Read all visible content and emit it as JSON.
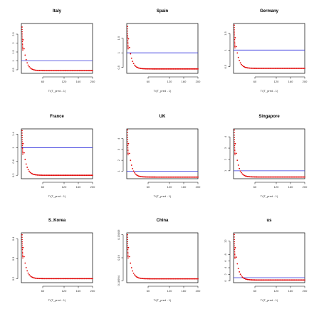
{
  "chart_data": [
    {
      "type": "scatter",
      "title": "Italy",
      "xlabel": "T/(T_pred - 1)",
      "ylabel": "",
      "xlim": [
        0,
        200
      ],
      "ylim": [
        0.3,
        3.1
      ],
      "x_ticks": [
        60,
        120,
        160,
        200
      ],
      "y_ticks": [
        0.5,
        1,
        1.5,
        2,
        2.5
      ],
      "hline": 1.0,
      "x_start": 2,
      "x_end": 200,
      "y_start": 2.9,
      "y_floor": 0.45,
      "decay": 0.12
    },
    {
      "type": "scatter",
      "title": "Spain",
      "xlabel": "T/(T_pred - 1)",
      "ylabel": "",
      "xlim": [
        0,
        200
      ],
      "ylim": [
        0.3,
        2.0
      ],
      "x_ticks": [
        60,
        120,
        160,
        200
      ],
      "y_ticks": [
        0.5,
        1,
        1.5
      ],
      "hline": 1.0,
      "x_start": 2,
      "x_end": 200,
      "y_start": 1.9,
      "y_floor": 0.45,
      "decay": 0.12
    },
    {
      "type": "scatter",
      "title": "Germany",
      "xlabel": "T/(T_pred - 1)",
      "ylabel": "",
      "xlim": [
        0,
        200
      ],
      "ylim": [
        0.3,
        1.8
      ],
      "x_ticks": [
        60,
        120,
        160,
        200
      ],
      "y_ticks": [
        0.5,
        1,
        1.5
      ],
      "hline": 1.0,
      "x_start": 2,
      "x_end": 200,
      "y_start": 1.75,
      "y_floor": 0.45,
      "decay": 0.12
    },
    {
      "type": "scatter",
      "title": "France",
      "xlabel": "T/(T_pred - 1)",
      "ylabel": "",
      "xlim": [
        0,
        200
      ],
      "ylim": [
        0.1,
        1.55
      ],
      "x_ticks": [
        60,
        120,
        160,
        200
      ],
      "y_ticks": [
        0.2,
        0.6,
        1.0,
        1.4
      ],
      "hline": 1.0,
      "x_start": 2,
      "x_end": 200,
      "y_start": 1.5,
      "y_floor": 0.2,
      "decay": 0.12
    },
    {
      "type": "scatter",
      "title": "UK",
      "xlabel": "T/(T_pred - 1)",
      "ylabel": "",
      "xlim": [
        0,
        200
      ],
      "ylim": [
        0.3,
        4.9
      ],
      "x_ticks": [
        60,
        120,
        160,
        200
      ],
      "y_ticks": [
        1,
        2,
        3,
        4
      ],
      "hline": 1.0,
      "x_start": 2,
      "x_end": 200,
      "y_start": 4.8,
      "y_floor": 0.45,
      "decay": 0.12
    },
    {
      "type": "scatter",
      "title": "Singapore",
      "xlabel": "T/(T_pred - 1)",
      "ylabel": "",
      "xlim": [
        0,
        200
      ],
      "ylim": [
        0.3,
        4.7
      ],
      "x_ticks": [
        60,
        120,
        160,
        200
      ],
      "y_ticks": [
        1,
        2,
        3,
        4
      ],
      "hline": 1.0,
      "x_start": 2,
      "x_end": 200,
      "y_start": 4.6,
      "y_floor": 0.45,
      "decay": 0.12
    },
    {
      "type": "scatter",
      "title": "S_Korea",
      "xlabel": "T/(T_pred - 1)",
      "ylabel": "",
      "xlim": [
        0,
        200
      ],
      "ylim": [
        0.18,
        0.43
      ],
      "x_ticks": [
        60,
        120,
        160,
        200
      ],
      "y_ticks": [
        0.2,
        0.3,
        0.4
      ],
      "hline": null,
      "x_start": 2,
      "x_end": 200,
      "y_start": 0.42,
      "y_floor": 0.2,
      "decay": 0.12
    },
    {
      "type": "scatter",
      "title": "China",
      "xlabel": "T/(T_pred - 1)",
      "ylabel": "",
      "xlim": [
        0,
        200
      ],
      "ylim": [
        0.189935,
        0.190065
      ],
      "x_ticks": [
        60,
        120,
        160,
        200
      ],
      "y_ticks": [
        0.18994,
        0.19,
        0.19006
      ],
      "hline": null,
      "x_start": 2,
      "x_end": 200,
      "y_start": 0.19006,
      "y_floor": 0.189945,
      "decay": 0.12
    },
    {
      "type": "scatter",
      "title": "us",
      "xlabel": "T/(T_pred - 1)",
      "ylabel": "",
      "xlim": [
        0,
        200
      ],
      "ylim": [
        -0.5,
        14.5
      ],
      "x_ticks": [
        60,
        120,
        160,
        200
      ],
      "y_ticks": [
        0,
        2,
        4,
        6,
        8,
        12
      ],
      "hline": 1.0,
      "x_start": 2,
      "x_end": 200,
      "y_start": 14,
      "y_floor": 0.3,
      "decay": 0.12
    }
  ],
  "colors": {
    "points": "#e00000",
    "hline": "#3333dd",
    "axis": "#000000"
  }
}
